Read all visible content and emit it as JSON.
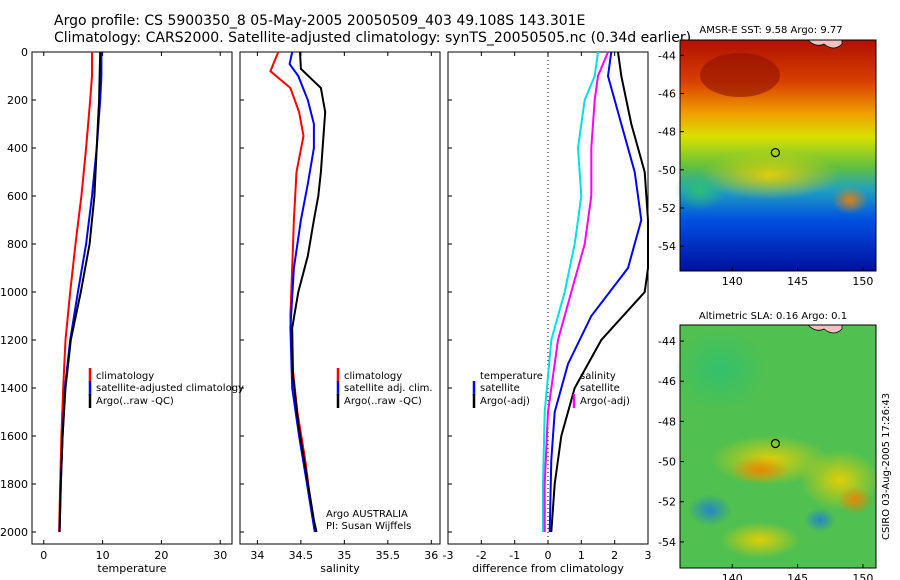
{
  "header": {
    "line1": "Argo profile: CS 5900350_8 05-May-2005 20050509_403 49.108S 143.301E",
    "line2": "Climatology: CARS2000. Satellite-adjusted climatology: synTS_20050505.nc (0.34d earlier)"
  },
  "credit": "Argo AUSTRALIA",
  "pi": "PI: Susan Wijffels",
  "side_stamp": "CSIRO 03-Aug-2005 17:26:43",
  "colors": {
    "climatology": "#ff0000",
    "satellite": "#0000ff",
    "argo": "#000000",
    "temp_diff": "#00e0e0",
    "sal_diff": "#ff00ff"
  },
  "chart_data": [
    {
      "type": "line",
      "xlabel": "temperature",
      "xlim": [
        -2,
        32
      ],
      "xticks": [
        "0",
        "10",
        "20",
        "30"
      ],
      "ylim": [
        0,
        2050
      ],
      "yticks": [
        "0",
        "200",
        "400",
        "600",
        "800",
        "1000",
        "1200",
        "1400",
        "1600",
        "1800",
        "2000"
      ],
      "legend": [
        "climatology",
        "satellite-adjusted climatology",
        "Argo(..raw -QC)"
      ],
      "series": [
        {
          "name": "climatology",
          "color": "#ff0000",
          "points": [
            [
              8.2,
              0
            ],
            [
              8.2,
              100
            ],
            [
              7.9,
              200
            ],
            [
              7.2,
              400
            ],
            [
              6.4,
              600
            ],
            [
              5.4,
              800
            ],
            [
              4.5,
              1000
            ],
            [
              3.7,
              1200
            ],
            [
              3.3,
              1400
            ],
            [
              3.0,
              1600
            ],
            [
              2.8,
              1800
            ],
            [
              2.6,
              2000
            ]
          ]
        },
        {
          "name": "satellite-adjusted climatology",
          "color": "#0000ff",
          "points": [
            [
              9.8,
              0
            ],
            [
              9.8,
              100
            ],
            [
              9.6,
              200
            ],
            [
              9.0,
              400
            ],
            [
              8.2,
              600
            ],
            [
              7.2,
              800
            ],
            [
              5.8,
              1000
            ],
            [
              4.5,
              1200
            ],
            [
              3.6,
              1400
            ],
            [
              3.2,
              1600
            ],
            [
              2.9,
              1800
            ],
            [
              2.7,
              2000
            ]
          ]
        },
        {
          "name": "Argo(..raw -QC)",
          "color": "#000000",
          "points": [
            [
              9.6,
              0
            ],
            [
              9.5,
              100
            ],
            [
              9.4,
              200
            ],
            [
              9.0,
              400
            ],
            [
              8.6,
              600
            ],
            [
              7.8,
              800
            ],
            [
              6.3,
              1000
            ],
            [
              4.6,
              1200
            ],
            [
              3.7,
              1400
            ],
            [
              3.2,
              1600
            ],
            [
              2.9,
              1800
            ],
            [
              2.7,
              2000
            ]
          ]
        }
      ]
    },
    {
      "type": "line",
      "xlabel": "salinity",
      "xlim": [
        33.8,
        36.1
      ],
      "xticks": [
        "34",
        "34.5",
        "35",
        "35.5",
        "36"
      ],
      "ylim": [
        0,
        2050
      ],
      "legend": [
        "climatology",
        "satellite adj. clim.",
        "Argo(..raw -QC)"
      ],
      "series": [
        {
          "name": "climatology",
          "color": "#ff0000",
          "points": [
            [
              34.24,
              0
            ],
            [
              34.15,
              80
            ],
            [
              34.38,
              150
            ],
            [
              34.48,
              250
            ],
            [
              34.53,
              350
            ],
            [
              34.45,
              500
            ],
            [
              34.42,
              700
            ],
            [
              34.4,
              900
            ],
            [
              34.38,
              1100
            ],
            [
              34.4,
              1300
            ],
            [
              34.46,
              1500
            ],
            [
              34.55,
              1700
            ],
            [
              34.62,
              1900
            ],
            [
              34.66,
              2000
            ]
          ]
        },
        {
          "name": "satellite adj. clim.",
          "color": "#0000ff",
          "points": [
            [
              34.4,
              0
            ],
            [
              34.37,
              50
            ],
            [
              34.47,
              100
            ],
            [
              34.58,
              200
            ],
            [
              34.65,
              300
            ],
            [
              34.65,
              400
            ],
            [
              34.58,
              550
            ],
            [
              34.5,
              700
            ],
            [
              34.42,
              900
            ],
            [
              34.38,
              1150
            ],
            [
              34.4,
              1400
            ],
            [
              34.48,
              1600
            ],
            [
              34.57,
              1800
            ],
            [
              34.66,
              2000
            ]
          ]
        },
        {
          "name": "Argo(..raw -QC)",
          "color": "#000000",
          "points": [
            [
              34.49,
              0
            ],
            [
              34.5,
              70
            ],
            [
              34.73,
              150
            ],
            [
              34.78,
              250
            ],
            [
              34.75,
              400
            ],
            [
              34.73,
              500
            ],
            [
              34.7,
              600
            ],
            [
              34.65,
              700
            ],
            [
              34.58,
              850
            ],
            [
              34.47,
              1000
            ],
            [
              34.4,
              1150
            ],
            [
              34.41,
              1350
            ],
            [
              34.47,
              1550
            ],
            [
              34.56,
              1750
            ],
            [
              34.65,
              1950
            ],
            [
              34.68,
              2000
            ]
          ]
        }
      ]
    },
    {
      "type": "line",
      "xlabel": "difference from climatology",
      "xlim": [
        -3,
        3
      ],
      "xticks": [
        "-3",
        "-2",
        "-1",
        "0",
        "1",
        "2",
        "3"
      ],
      "ylim": [
        0,
        2050
      ],
      "legend_temp": [
        "temperature",
        "satellite",
        "Argo(-adj)"
      ],
      "legend_sal": [
        "salinity",
        "satellite",
        "Argo(-adj)"
      ],
      "series": [
        {
          "name": "temperature satellite",
          "color": "#00e0e0",
          "points": [
            [
              1.5,
              0
            ],
            [
              1.4,
              100
            ],
            [
              1.1,
              200
            ],
            [
              0.9,
              400
            ],
            [
              1.0,
              600
            ],
            [
              0.8,
              800
            ],
            [
              0.5,
              1000
            ],
            [
              0.1,
              1200
            ],
            [
              -0.1,
              1500
            ],
            [
              -0.15,
              1800
            ],
            [
              -0.15,
              2000
            ]
          ]
        },
        {
          "name": "temperature Argo(-adj)",
          "color": "#ff00ff",
          "points": [
            [
              1.8,
              0
            ],
            [
              1.5,
              100
            ],
            [
              1.4,
              200
            ],
            [
              1.3,
              400
            ],
            [
              1.3,
              600
            ],
            [
              1.1,
              800
            ],
            [
              0.7,
              1000
            ],
            [
              0.3,
              1200
            ],
            [
              0.0,
              1500
            ],
            [
              -0.1,
              1800
            ],
            [
              -0.1,
              2000
            ]
          ]
        },
        {
          "name": "salinity satellite",
          "color": "#0000ff",
          "points": [
            [
              1.9,
              0
            ],
            [
              1.8,
              100
            ],
            [
              2.2,
              300
            ],
            [
              2.6,
              500
            ],
            [
              2.8,
              700
            ],
            [
              2.4,
              900
            ],
            [
              1.3,
              1100
            ],
            [
              0.6,
              1300
            ],
            [
              0.2,
              1500
            ],
            [
              0.1,
              1700
            ],
            [
              0.05,
              2000
            ]
          ]
        },
        {
          "name": "salinity Argo(-adj)",
          "color": "#000000",
          "points": [
            [
              2.1,
              0
            ],
            [
              2.2,
              100
            ],
            [
              2.5,
              300
            ],
            [
              2.9,
              500
            ],
            [
              3.0,
              700
            ],
            [
              3.0,
              900
            ],
            [
              2.9,
              1000
            ],
            [
              1.6,
              1200
            ],
            [
              0.8,
              1400
            ],
            [
              0.4,
              1600
            ],
            [
              0.2,
              1800
            ],
            [
              0.1,
              2000
            ]
          ]
        }
      ]
    },
    {
      "type": "heatmap",
      "title": "AMSR-E SST: 9.58 Argo: 9.77",
      "xticks": [
        "140",
        "145",
        "150"
      ],
      "yticks": [
        "-44",
        "-46",
        "-48",
        "-50",
        "-52",
        "-54"
      ],
      "xlim": [
        136,
        151
      ],
      "ylim": [
        -55.3,
        -43.2
      ],
      "marker": [
        143.3,
        -49.1
      ]
    },
    {
      "type": "heatmap",
      "title": "Altimetric SLA: 0.16 Argo: 0.1",
      "xticks": [
        "140",
        "145",
        "150"
      ],
      "yticks": [
        "-44",
        "-46",
        "-48",
        "-50",
        "-52",
        "-54"
      ],
      "xlim": [
        136,
        151
      ],
      "ylim": [
        -55.3,
        -43.2
      ],
      "marker": [
        143.3,
        -49.1
      ]
    }
  ]
}
